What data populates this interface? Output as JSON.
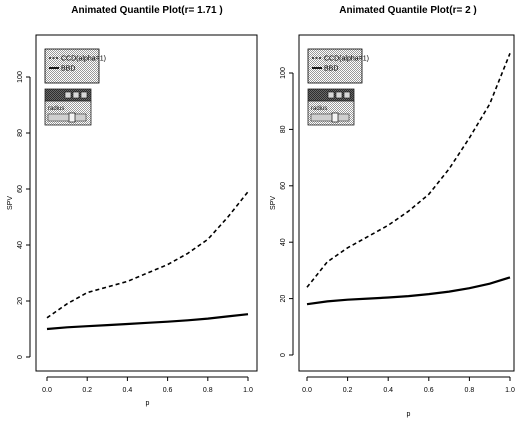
{
  "chart_data": [
    {
      "type": "line",
      "title": "Animated Quantile Plot(r= 1.71 )",
      "xlabel": "p",
      "ylabel": "SPV",
      "xlim": [
        0,
        1
      ],
      "ylim": [
        0,
        110
      ],
      "x_ticks": [
        "0.0",
        "0.2",
        "0.4",
        "0.6",
        "0.8",
        "1.0"
      ],
      "y_ticks": [
        "0",
        "20",
        "40",
        "60",
        "80",
        "100"
      ],
      "grid": false,
      "legend": "top-left",
      "legend_entries": [
        "CCD(alpha=1)",
        "BBD"
      ],
      "series": [
        {
          "name": "CCD(alpha=1)",
          "style": "dashed",
          "x": [
            0,
            0.1,
            0.2,
            0.3,
            0.4,
            0.5,
            0.6,
            0.7,
            0.8,
            0.9,
            1.0
          ],
          "values": [
            14,
            19,
            23,
            25,
            27,
            30,
            33,
            37,
            42,
            50,
            59
          ]
        },
        {
          "name": "BBD",
          "style": "solid",
          "x": [
            0,
            0.1,
            0.2,
            0.3,
            0.4,
            0.5,
            0.6,
            0.7,
            0.8,
            0.9,
            1.0
          ],
          "values": [
            10,
            10.6,
            11,
            11.4,
            11.8,
            12.2,
            12.6,
            13.1,
            13.7,
            14.5,
            15.3
          ]
        }
      ],
      "widget": {
        "label": "radius"
      }
    },
    {
      "type": "line",
      "title": "Animated Quantile Plot(r= 2 )",
      "xlabel": "p",
      "ylabel": "SPV",
      "xlim": [
        0,
        1
      ],
      "ylim": [
        0,
        110
      ],
      "x_ticks": [
        "0.0",
        "0.2",
        "0.4",
        "0.6",
        "0.8",
        "1.0"
      ],
      "y_ticks": [
        "0",
        "20",
        "40",
        "60",
        "80",
        "100"
      ],
      "grid": false,
      "legend": "top-left",
      "legend_entries": [
        "CCD(alpha=1)",
        "BBD"
      ],
      "series": [
        {
          "name": "CCD(alpha=1)",
          "style": "dashed",
          "x": [
            0,
            0.1,
            0.2,
            0.3,
            0.4,
            0.5,
            0.6,
            0.7,
            0.8,
            0.9,
            1.0
          ],
          "values": [
            24,
            33,
            38,
            42,
            46,
            51,
            57,
            66,
            77,
            89,
            107
          ]
        },
        {
          "name": "BBD",
          "style": "solid",
          "x": [
            0,
            0.1,
            0.2,
            0.3,
            0.4,
            0.5,
            0.6,
            0.7,
            0.8,
            0.9,
            1.0
          ],
          "values": [
            18,
            19,
            19.6,
            20,
            20.4,
            20.9,
            21.6,
            22.5,
            23.7,
            25.3,
            27.5
          ]
        }
      ],
      "widget": {
        "label": "radius"
      }
    }
  ]
}
